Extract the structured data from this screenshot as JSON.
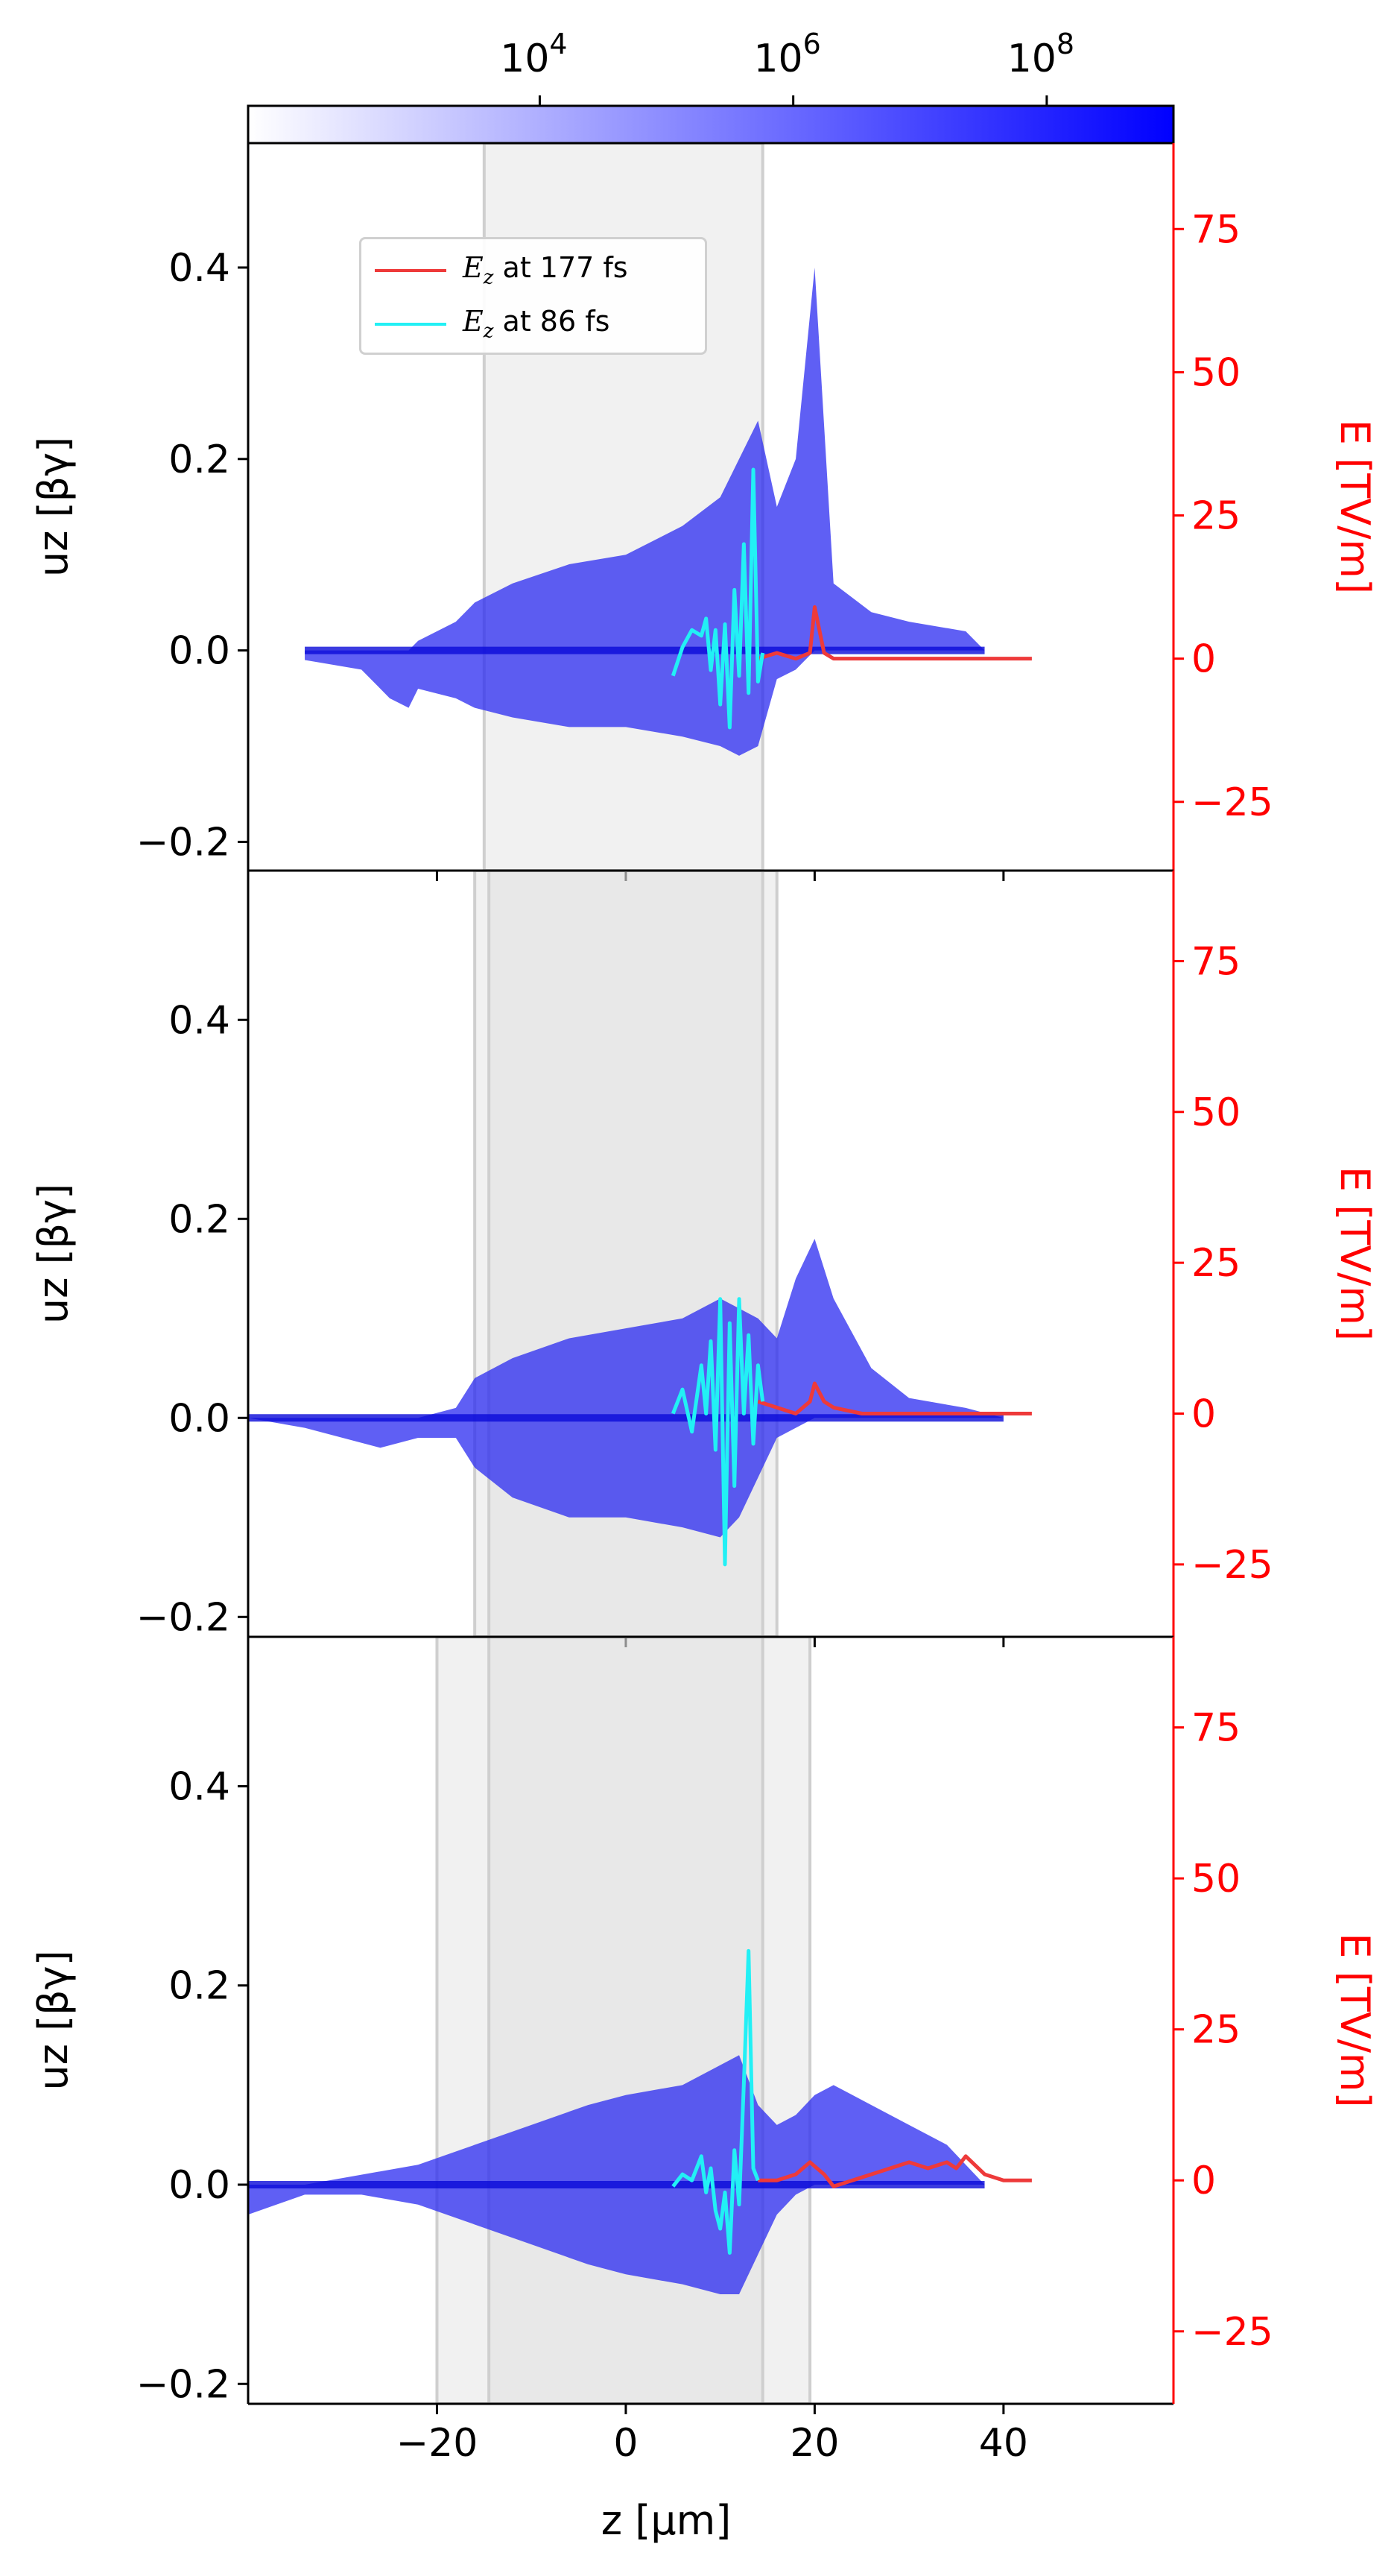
{
  "colorbar": {
    "ticks": [
      {
        "base": "10",
        "exp": "4",
        "value": 10000
      },
      {
        "base": "10",
        "exp": "6",
        "value": 1000000
      },
      {
        "base": "10",
        "exp": "8",
        "value": 100000000
      }
    ],
    "range": [
      50,
      1000000000
    ],
    "scale": "log",
    "colormap": [
      "#ffffff",
      "#0000ff"
    ]
  },
  "legend": {
    "items": [
      {
        "symbol": "E",
        "sub": "z",
        "text": " at 177 fs",
        "color": "#ee3a3a"
      },
      {
        "symbol": "E",
        "sub": "z",
        "text": " at 86 fs",
        "color": "#22f0f5"
      }
    ]
  },
  "labels": {
    "ylabel_left": "uz [βγ]",
    "ylabel_right": "E [TV/m]",
    "xlabel": "z [μm]"
  },
  "colors": {
    "particles": "#2a2af0",
    "ez_177": "#ee3a3a",
    "ez_86": "#22f0f5",
    "right_axis": "#ff0000",
    "shade": "#dcdcdc"
  },
  "chart_data": [
    {
      "type": "area",
      "panel": "top",
      "xlim": [
        -40,
        58
      ],
      "ylim_left": [
        -0.23,
        0.53
      ],
      "ylim_right": [
        -37,
        90
      ],
      "xticks": [
        -20,
        0,
        20,
        40
      ],
      "yticks_left": [
        -0.2,
        0.0,
        0.2,
        0.4
      ],
      "yticks_left_labels": [
        "−0.2",
        "0.0",
        "0.2",
        "0.4"
      ],
      "yticks_right": [
        -25,
        0,
        25,
        50,
        75
      ],
      "yticks_right_labels": [
        "−25",
        "0",
        "25",
        "50",
        "75"
      ],
      "shaded_regions": [
        [
          -15,
          14.5
        ]
      ],
      "envelope": {
        "x": [
          -34,
          -28,
          -25,
          -23,
          -22,
          -18,
          -16,
          -12,
          -6,
          0,
          6,
          10,
          12,
          14,
          16,
          18,
          19,
          20,
          22,
          26,
          30,
          36,
          38
        ],
        "upper": [
          0.0,
          0.0,
          0.0,
          0.0,
          0.01,
          0.03,
          0.05,
          0.07,
          0.09,
          0.1,
          0.13,
          0.16,
          0.2,
          0.24,
          0.15,
          0.2,
          0.3,
          0.4,
          0.07,
          0.04,
          0.03,
          0.02,
          0.0
        ],
        "lower": [
          -0.01,
          -0.02,
          -0.05,
          -0.06,
          -0.04,
          -0.05,
          -0.06,
          -0.07,
          -0.08,
          -0.08,
          -0.09,
          -0.1,
          -0.11,
          -0.1,
          -0.03,
          -0.02,
          -0.01,
          0.0,
          0.0,
          0.0,
          0.0,
          0.0,
          0.0
        ]
      },
      "ez_177": {
        "x": [
          14,
          16,
          18,
          19.5,
          20,
          21,
          22,
          25,
          30,
          35,
          40,
          43
        ],
        "y": [
          0,
          1,
          0,
          1,
          9,
          1,
          0,
          0,
          0,
          0,
          0,
          0
        ]
      },
      "ez_86": {
        "x": [
          5,
          6,
          7,
          8,
          8.5,
          9,
          9.5,
          10,
          10.5,
          11,
          11.5,
          12,
          12.5,
          13,
          13.5,
          14,
          14.5
        ],
        "y": [
          -3,
          2,
          5,
          4,
          7,
          -2,
          5,
          -8,
          6,
          -12,
          12,
          -3,
          20,
          -6,
          33,
          -4,
          1
        ]
      }
    },
    {
      "type": "area",
      "panel": "middle",
      "xlim": [
        -40,
        58
      ],
      "ylim_left": [
        -0.22,
        0.55
      ],
      "ylim_right": [
        -37,
        90
      ],
      "xticks": [
        -20,
        0,
        20,
        40
      ],
      "yticks_left": [
        -0.2,
        0.0,
        0.2,
        0.4
      ],
      "yticks_left_labels": [
        "−0.2",
        "0.0",
        "0.2",
        "0.4"
      ],
      "yticks_right": [
        -25,
        0,
        25,
        50,
        75
      ],
      "yticks_right_labels": [
        "−25",
        "0",
        "25",
        "50",
        "75"
      ],
      "shaded_regions": [
        [
          -16,
          16
        ],
        [
          -14.5,
          14.5
        ]
      ],
      "envelope": {
        "x": [
          -40,
          -34,
          -30,
          -26,
          -22,
          -18,
          -16,
          -12,
          -6,
          0,
          6,
          10,
          12,
          14,
          16,
          18,
          20,
          22,
          26,
          30,
          36,
          40
        ],
        "upper": [
          0.0,
          0.0,
          0.0,
          0.0,
          0.0,
          0.01,
          0.04,
          0.06,
          0.08,
          0.09,
          0.1,
          0.12,
          0.11,
          0.1,
          0.08,
          0.14,
          0.18,
          0.12,
          0.05,
          0.02,
          0.01,
          0.0
        ],
        "lower": [
          0.0,
          -0.01,
          -0.02,
          -0.03,
          -0.02,
          -0.02,
          -0.05,
          -0.08,
          -0.1,
          -0.1,
          -0.11,
          -0.12,
          -0.1,
          -0.06,
          -0.02,
          -0.01,
          0.0,
          0.0,
          0.0,
          0.0,
          0.0,
          0.0
        ]
      },
      "ez_177": {
        "x": [
          14,
          16,
          18,
          19.5,
          20,
          21,
          22,
          25,
          30,
          35,
          38,
          43
        ],
        "y": [
          2,
          1,
          0,
          2,
          5,
          2,
          1,
          0,
          0,
          0,
          0,
          0
        ]
      },
      "ez_86": {
        "x": [
          5,
          6,
          7,
          8,
          8.5,
          9,
          9.5,
          10,
          10.5,
          11,
          11.5,
          12,
          12.5,
          13,
          13.5,
          14,
          14.5
        ],
        "y": [
          0,
          4,
          -3,
          8,
          0,
          12,
          -6,
          19,
          -25,
          15,
          -12,
          19,
          0,
          13,
          -5,
          8,
          2
        ]
      }
    },
    {
      "type": "area",
      "panel": "bottom",
      "xlim": [
        -40,
        58
      ],
      "ylim_left": [
        -0.22,
        0.55
      ],
      "ylim_right": [
        -37,
        90
      ],
      "xticks": [
        -20,
        0,
        20,
        40
      ],
      "xtick_labels": [
        "−20",
        "0",
        "20",
        "40"
      ],
      "yticks_left": [
        -0.2,
        0.0,
        0.2,
        0.4
      ],
      "yticks_left_labels": [
        "−0.2",
        "0.0",
        "0.2",
        "0.4"
      ],
      "yticks_right": [
        -25,
        0,
        25,
        50,
        75
      ],
      "yticks_right_labels": [
        "−25",
        "0",
        "25",
        "50",
        "75"
      ],
      "shaded_regions": [
        [
          -20,
          19.5
        ],
        [
          -14.5,
          14.5
        ]
      ],
      "envelope": {
        "x": [
          -40,
          -34,
          -28,
          -22,
          -16,
          -10,
          -4,
          0,
          6,
          10,
          12,
          14,
          16,
          18,
          20,
          22,
          26,
          30,
          34,
          36,
          38
        ],
        "upper": [
          0.0,
          0.0,
          0.01,
          0.02,
          0.04,
          0.06,
          0.08,
          0.09,
          0.1,
          0.12,
          0.13,
          0.08,
          0.06,
          0.07,
          0.09,
          0.1,
          0.08,
          0.06,
          0.04,
          0.02,
          0.0
        ],
        "lower": [
          -0.03,
          -0.01,
          -0.01,
          -0.02,
          -0.04,
          -0.06,
          -0.08,
          -0.09,
          -0.1,
          -0.11,
          -0.11,
          -0.07,
          -0.03,
          -0.01,
          0.0,
          0.0,
          0.0,
          0.0,
          0.0,
          0.0,
          0.0
        ]
      },
      "ez_177": {
        "x": [
          14,
          16,
          18,
          19.5,
          21,
          22,
          24,
          26,
          28,
          30,
          32,
          34,
          35,
          36,
          38,
          40,
          43
        ],
        "y": [
          0,
          0,
          1,
          3,
          1,
          -1,
          0,
          1,
          2,
          3,
          2,
          3,
          2,
          4,
          1,
          0,
          0
        ]
      },
      "ez_86": {
        "x": [
          5,
          6,
          7,
          8,
          8.5,
          9,
          9.5,
          10,
          10.5,
          11,
          11.5,
          12,
          12.5,
          13,
          13.5,
          14
        ],
        "y": [
          -1,
          1,
          0,
          4,
          -2,
          2,
          -5,
          -8,
          -2,
          -12,
          5,
          -4,
          16,
          38,
          2,
          0
        ]
      }
    }
  ]
}
